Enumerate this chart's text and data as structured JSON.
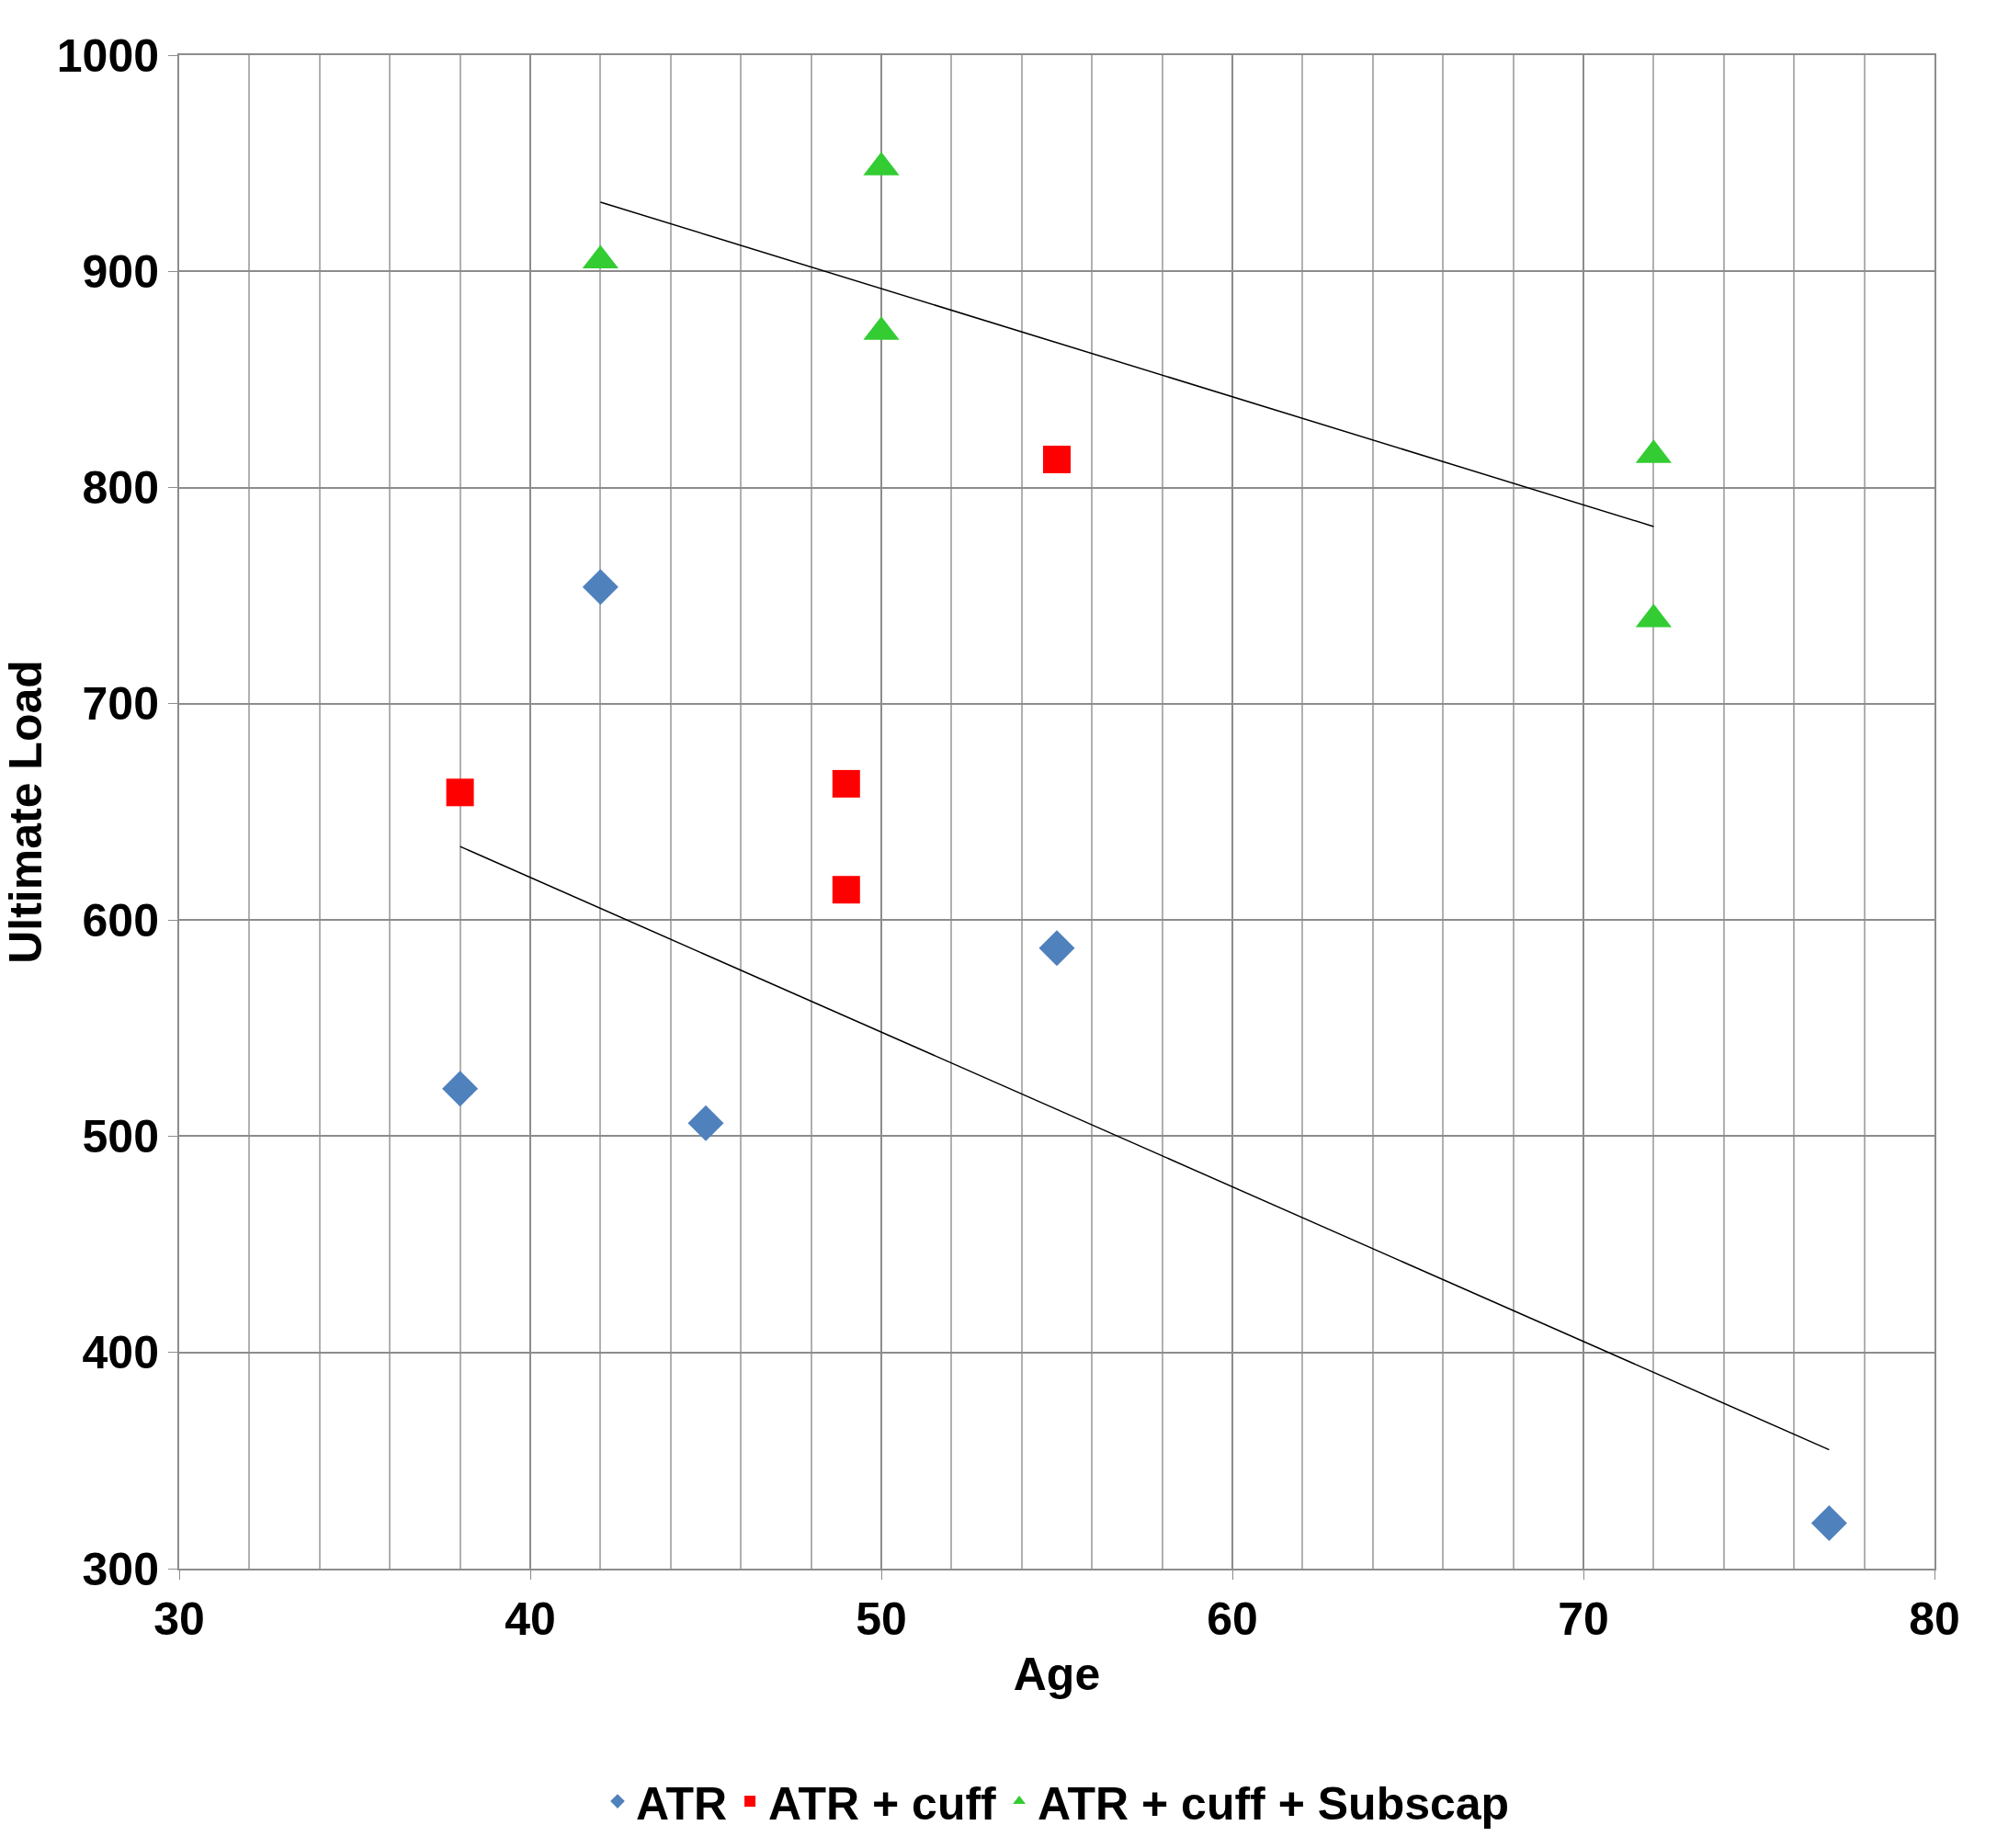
{
  "chart_data": {
    "type": "scatter",
    "xlabel": "Age",
    "ylabel": "Ultimate Load",
    "xlim": [
      30,
      80
    ],
    "xticks": [
      30,
      40,
      50,
      60,
      70,
      80
    ],
    "ylim": [
      300,
      1000
    ],
    "yticks": [
      300,
      400,
      500,
      600,
      700,
      800,
      900,
      1000
    ],
    "grid": true,
    "legend": "bottom",
    "series": [
      {
        "name": "ATR",
        "color": "#4f81bd",
        "marker": "diamond",
        "x": [
          38,
          42,
          45,
          55,
          77
        ],
        "values": [
          522,
          754,
          506,
          587,
          321
        ]
      },
      {
        "name": "ATR + cuff",
        "color": "#ff0000",
        "marker": "square",
        "x": [
          38,
          49,
          49,
          55
        ],
        "values": [
          659,
          663,
          614,
          813
        ]
      },
      {
        "name": "ATR + cuff + Subscap",
        "color": "#33cc33",
        "marker": "triangle",
        "x": [
          42,
          50,
          50,
          72,
          72
        ],
        "values": [
          905,
          948,
          872,
          815,
          739
        ]
      },
      {
        "type": "line",
        "color": "#000000",
        "x": [
          38,
          77
        ],
        "values": [
          634,
          355
        ]
      },
      {
        "type": "line",
        "color": "#000000",
        "x": [
          42,
          72
        ],
        "values": [
          932,
          782
        ]
      }
    ]
  }
}
